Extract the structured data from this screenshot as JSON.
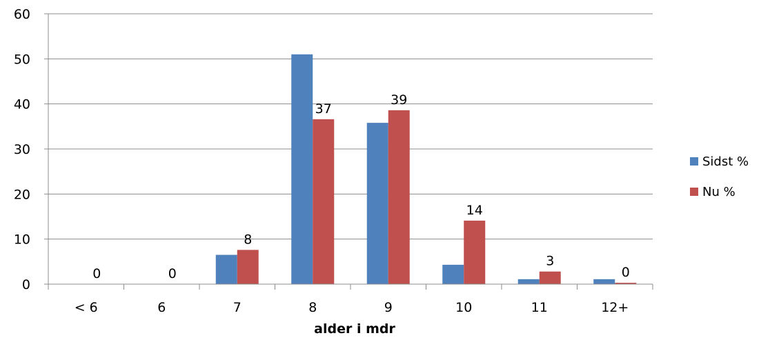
{
  "chart_data": {
    "type": "bar",
    "title": "",
    "xlabel": "alder i mdr",
    "ylabel": "",
    "categories": [
      "< 6",
      "6",
      "7",
      "8",
      "9",
      "10",
      "11",
      "12+"
    ],
    "series": [
      {
        "name": "Sidst %",
        "color": "#4F81BD",
        "values": [
          0,
          0,
          6.5,
          51,
          35.8,
          4.3,
          1.1,
          1.1
        ]
      },
      {
        "name": "Nu %",
        "color": "#C0504D",
        "values": [
          0,
          0,
          7.6,
          36.6,
          38.6,
          14.1,
          2.8,
          0.3
        ],
        "data_labels": [
          "0",
          "0",
          "8",
          "37",
          "39",
          "14",
          "3",
          "0"
        ]
      }
    ],
    "ylim": [
      0,
      60
    ],
    "yticks": [
      0,
      10,
      20,
      30,
      40,
      50,
      60
    ],
    "grid": true,
    "legend_position": "right"
  }
}
